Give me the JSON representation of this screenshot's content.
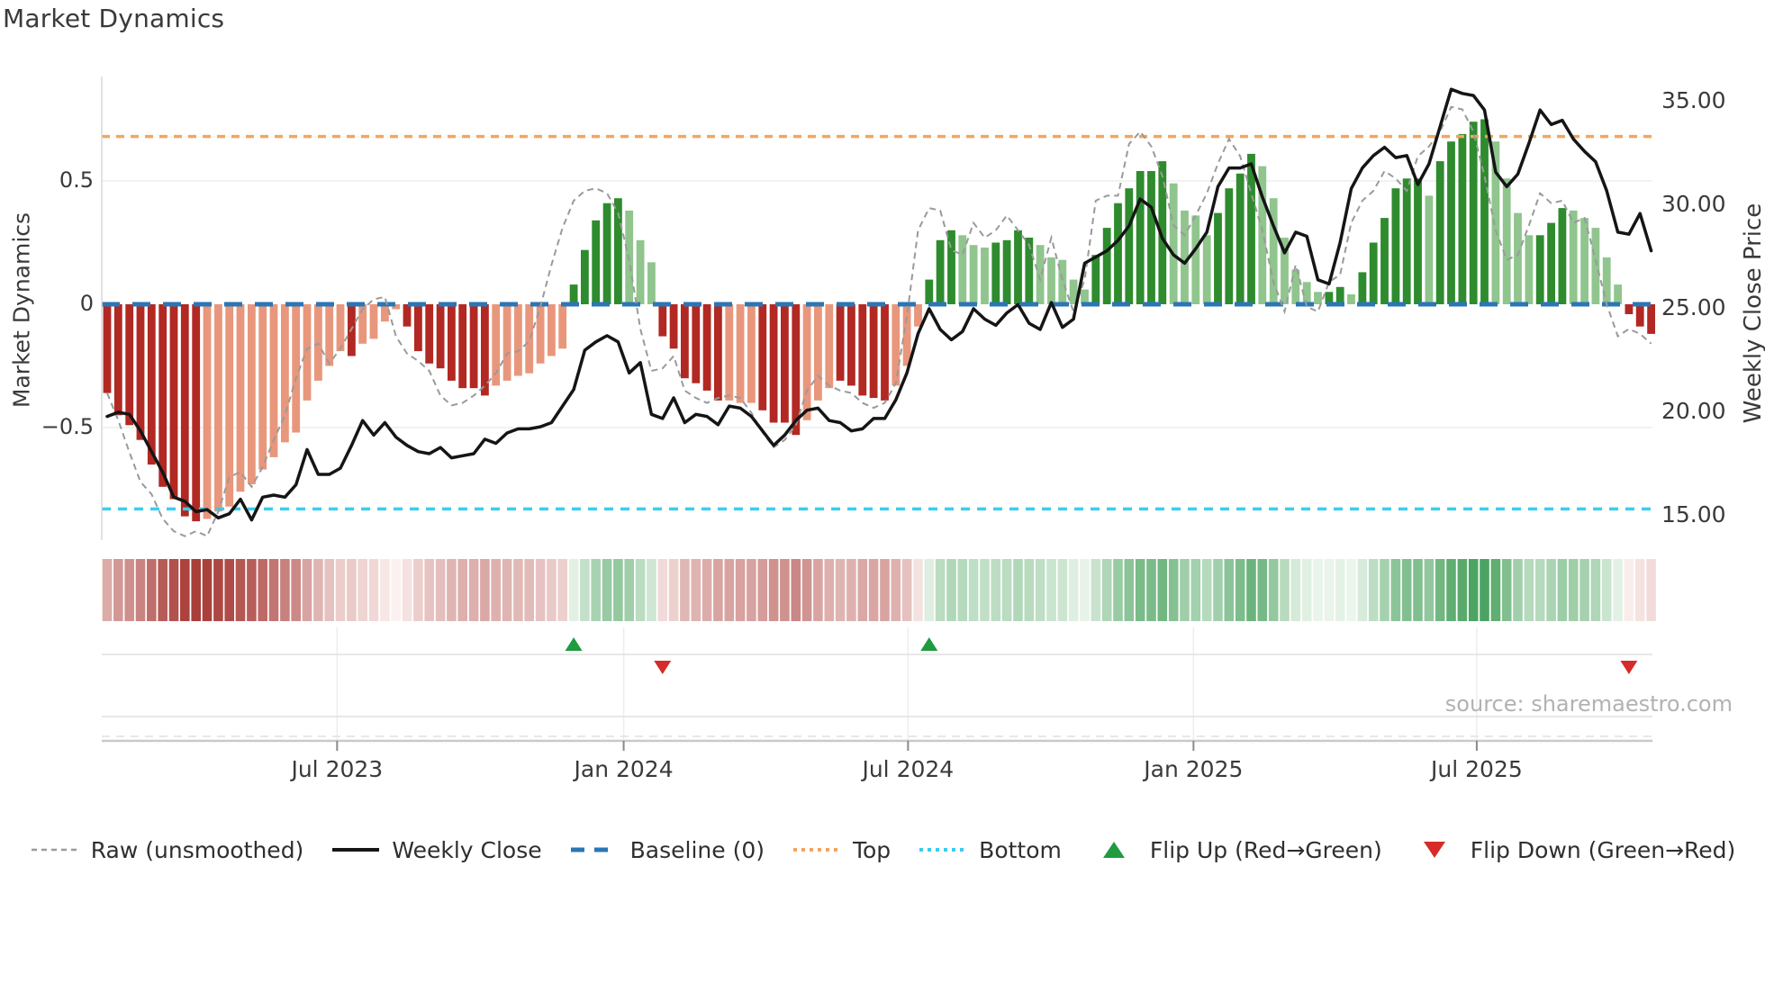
{
  "title": "Market Dynamics",
  "source": "source: sharemaestro.com",
  "axes": {
    "left": {
      "label": "Market Dynamics",
      "ticks": [
        {
          "label": "0.5",
          "value": 0.5
        },
        {
          "label": "0",
          "value": 0.0
        },
        {
          "label": "−0.5",
          "value": -0.5
        }
      ]
    },
    "right": {
      "label": "Weekly Close Price",
      "ticks": [
        {
          "label": "35.00",
          "value": 35
        },
        {
          "label": "30.00",
          "value": 30
        },
        {
          "label": "25.00",
          "value": 25
        },
        {
          "label": "20.00",
          "value": 20
        },
        {
          "label": "15.00",
          "value": 15
        }
      ]
    },
    "x": {
      "ticks": [
        {
          "label": "Jul 2023",
          "week": 20.7
        },
        {
          "label": "Jan 2024",
          "week": 46.5
        },
        {
          "label": "Jul 2024",
          "week": 72.1
        },
        {
          "label": "Jan 2025",
          "week": 97.8
        },
        {
          "label": "Jul 2025",
          "week": 123.3
        }
      ]
    }
  },
  "legend": {
    "items": [
      {
        "id": "raw",
        "kind": "dash-gray",
        "label": "Raw (unsmoothed)"
      },
      {
        "id": "weekly-close",
        "kind": "solid-black",
        "label": "Weekly Close"
      },
      {
        "id": "baseline",
        "kind": "dash-blue",
        "label": "Baseline (0)"
      },
      {
        "id": "top",
        "kind": "dot-orange",
        "label": "Top"
      },
      {
        "id": "bottom",
        "kind": "dot-cyan",
        "label": "Bottom"
      },
      {
        "id": "flip-up",
        "kind": "tri-up-green",
        "label": "Flip Up (Red→Green)"
      },
      {
        "id": "flip-down",
        "kind": "tri-down-red",
        "label": "Flip Down (Green→Red)"
      }
    ]
  },
  "colors": {
    "bar_dark_red": "#b22823",
    "bar_light_red": "#e8977c",
    "bar_dark_green": "#2e8b2e",
    "bar_light_green": "#90c58e",
    "price_line": "#151515",
    "raw_line": "#9a9a9a",
    "baseline": "#2b76b4",
    "top_line": "#f3a55f",
    "bottom_line": "#3bcdf0",
    "flip_up_marker": "#1e9c3f",
    "flip_down_marker": "#d62b28",
    "heat_neg_deep": "#a93f3b",
    "heat_pos_deep": "#2f9447",
    "gridline": "#ededed",
    "subline": "#e0e0e0",
    "axisline": "#c9c9c9",
    "spine": "#d9d9d9",
    "text": "#3a3a3a"
  },
  "chart_data": {
    "type": "bar",
    "subtype": "bar+line combo, weekly",
    "title": "Market Dynamics",
    "xlabel": "",
    "ylabel_left": "Market Dynamics",
    "ylabel_right": "Weekly Close Price",
    "n_weeks": 140,
    "left_axis_range": [
      -1.0,
      0.93
    ],
    "right_axis_range": [
      13.8,
      36.2
    ],
    "reference_lines": {
      "baseline": 0.0,
      "top": 0.68,
      "bottom": -0.83
    },
    "markers": {
      "flip_up_weeks": [
        42,
        74
      ],
      "flip_down_weeks": [
        50,
        137
      ]
    },
    "bar_shade_pattern": "DDDDDDDDDLLLLLLLLLLLLLDLLLLDDDDDDDDLLLLLLLDDDDDLLLDDDDDDLLLDDDDLLLDDDDDLLLDDDLLLDDDDLLLLLDDDDDDDLLLLDDDDLLLLLLDDLDDDDDDLDDDDDLLLLDDDLLLLLDDD",
    "series": [
      {
        "name": "Market Dynamics bars",
        "type": "bar",
        "axis": "left",
        "values": [
          -0.36,
          -0.45,
          -0.49,
          -0.55,
          -0.65,
          -0.74,
          -0.79,
          -0.86,
          -0.88,
          -0.87,
          -0.84,
          -0.82,
          -0.76,
          -0.73,
          -0.67,
          -0.62,
          -0.56,
          -0.52,
          -0.39,
          -0.31,
          -0.25,
          -0.19,
          -0.21,
          -0.16,
          -0.14,
          -0.07,
          -0.02,
          -0.09,
          -0.19,
          -0.24,
          -0.26,
          -0.31,
          -0.34,
          -0.34,
          -0.37,
          -0.33,
          -0.31,
          -0.29,
          -0.28,
          -0.24,
          -0.21,
          -0.18,
          0.08,
          0.22,
          0.34,
          0.41,
          0.43,
          0.38,
          0.26,
          0.17,
          -0.13,
          -0.18,
          -0.3,
          -0.32,
          -0.35,
          -0.39,
          -0.39,
          -0.4,
          -0.4,
          -0.43,
          -0.48,
          -0.48,
          -0.53,
          -0.47,
          -0.39,
          -0.34,
          -0.31,
          -0.33,
          -0.37,
          -0.38,
          -0.39,
          -0.33,
          -0.25,
          -0.09,
          0.1,
          0.26,
          0.3,
          0.28,
          0.24,
          0.23,
          0.25,
          0.26,
          0.3,
          0.27,
          0.24,
          0.19,
          0.18,
          0.1,
          0.06,
          0.2,
          0.31,
          0.41,
          0.47,
          0.54,
          0.54,
          0.58,
          0.49,
          0.38,
          0.36,
          0.28,
          0.37,
          0.47,
          0.53,
          0.61,
          0.56,
          0.43,
          0.27,
          0.14,
          0.09,
          0.05,
          0.05,
          0.07,
          0.04,
          0.13,
          0.25,
          0.35,
          0.47,
          0.51,
          0.51,
          0.44,
          0.58,
          0.66,
          0.69,
          0.74,
          0.75,
          0.66,
          0.51,
          0.37,
          0.28,
          0.28,
          0.33,
          0.39,
          0.38,
          0.35,
          0.31,
          0.19,
          0.08,
          -0.04,
          -0.09,
          -0.12
        ]
      },
      {
        "name": "Raw (unsmoothed)",
        "type": "line",
        "dashed": true,
        "axis": "left",
        "values": [
          -0.36,
          -0.47,
          -0.6,
          -0.72,
          -0.77,
          -0.87,
          -0.92,
          -0.94,
          -0.92,
          -0.94,
          -0.84,
          -0.7,
          -0.68,
          -0.74,
          -0.66,
          -0.55,
          -0.45,
          -0.3,
          -0.18,
          -0.16,
          -0.24,
          -0.18,
          -0.1,
          -0.02,
          0.02,
          0.03,
          -0.13,
          -0.2,
          -0.23,
          -0.27,
          -0.37,
          -0.41,
          -0.4,
          -0.37,
          -0.33,
          -0.28,
          -0.2,
          -0.19,
          -0.15,
          -0.01,
          0.16,
          0.31,
          0.42,
          0.46,
          0.47,
          0.45,
          0.37,
          0.18,
          -0.1,
          -0.27,
          -0.26,
          -0.21,
          -0.35,
          -0.38,
          -0.4,
          -0.38,
          -0.37,
          -0.38,
          -0.44,
          -0.52,
          -0.58,
          -0.55,
          -0.49,
          -0.35,
          -0.29,
          -0.33,
          -0.35,
          -0.36,
          -0.4,
          -0.42,
          -0.4,
          -0.32,
          -0.05,
          0.3,
          0.39,
          0.38,
          0.22,
          0.2,
          0.33,
          0.27,
          0.3,
          0.36,
          0.3,
          0.24,
          0.1,
          0.27,
          0.1,
          -0.03,
          0.1,
          0.42,
          0.44,
          0.44,
          0.65,
          0.7,
          0.64,
          0.52,
          0.32,
          0.28,
          0.36,
          0.45,
          0.57,
          0.67,
          0.6,
          0.45,
          0.3,
          0.09,
          -0.03,
          0.16,
          -0.01,
          -0.03,
          0.09,
          0.12,
          0.33,
          0.42,
          0.46,
          0.54,
          0.51,
          0.46,
          0.6,
          0.64,
          0.7,
          0.8,
          0.79,
          0.7,
          0.52,
          0.3,
          0.18,
          0.2,
          0.32,
          0.45,
          0.41,
          0.42,
          0.33,
          0.35,
          0.18,
          0.0,
          -0.13,
          -0.1,
          -0.12,
          -0.16
        ]
      },
      {
        "name": "Weekly Close",
        "type": "line",
        "dashed": false,
        "axis": "right",
        "values": [
          19.8,
          20.0,
          19.9,
          19.1,
          18.1,
          17.1,
          15.9,
          15.7,
          15.2,
          15.3,
          14.9,
          15.1,
          15.8,
          14.8,
          15.9,
          16.0,
          15.9,
          16.5,
          18.2,
          17.0,
          17.0,
          17.3,
          18.4,
          19.6,
          18.9,
          19.5,
          18.8,
          18.4,
          18.1,
          18.0,
          18.3,
          17.8,
          17.9,
          18.0,
          18.7,
          18.5,
          19.0,
          19.2,
          19.2,
          19.3,
          19.5,
          20.3,
          21.1,
          23.0,
          23.4,
          23.7,
          23.4,
          21.9,
          22.4,
          19.9,
          19.7,
          20.7,
          19.5,
          19.9,
          19.8,
          19.4,
          20.3,
          20.2,
          19.8,
          19.1,
          18.4,
          18.9,
          19.6,
          20.1,
          20.2,
          19.6,
          19.5,
          19.1,
          19.2,
          19.7,
          19.7,
          20.6,
          21.9,
          23.8,
          25.0,
          24.0,
          23.5,
          23.9,
          25.0,
          24.5,
          24.2,
          24.8,
          25.2,
          24.3,
          24.0,
          25.3,
          24.1,
          24.5,
          27.2,
          27.5,
          27.8,
          28.3,
          29.0,
          30.3,
          29.9,
          28.4,
          27.6,
          27.2,
          27.9,
          28.7,
          30.9,
          31.8,
          31.8,
          32.0,
          30.4,
          29.0,
          27.7,
          28.7,
          28.5,
          26.4,
          26.2,
          28.2,
          30.8,
          31.8,
          32.4,
          32.8,
          32.3,
          32.4,
          31.0,
          32.0,
          33.8,
          35.6,
          35.4,
          35.3,
          34.6,
          31.6,
          30.9,
          31.5,
          33.0,
          34.6,
          33.9,
          34.1,
          33.2,
          32.6,
          32.1,
          30.7,
          28.7,
          28.6,
          29.6,
          27.8
        ]
      }
    ],
    "heatmap": {
      "type": "heatmap",
      "note": "one cell per week, red-white-green scale of bar values",
      "derived_from": "Market Dynamics bars"
    },
    "legend_position": "bottom",
    "grid": "horizontal only (0.5 / -0.5)"
  }
}
